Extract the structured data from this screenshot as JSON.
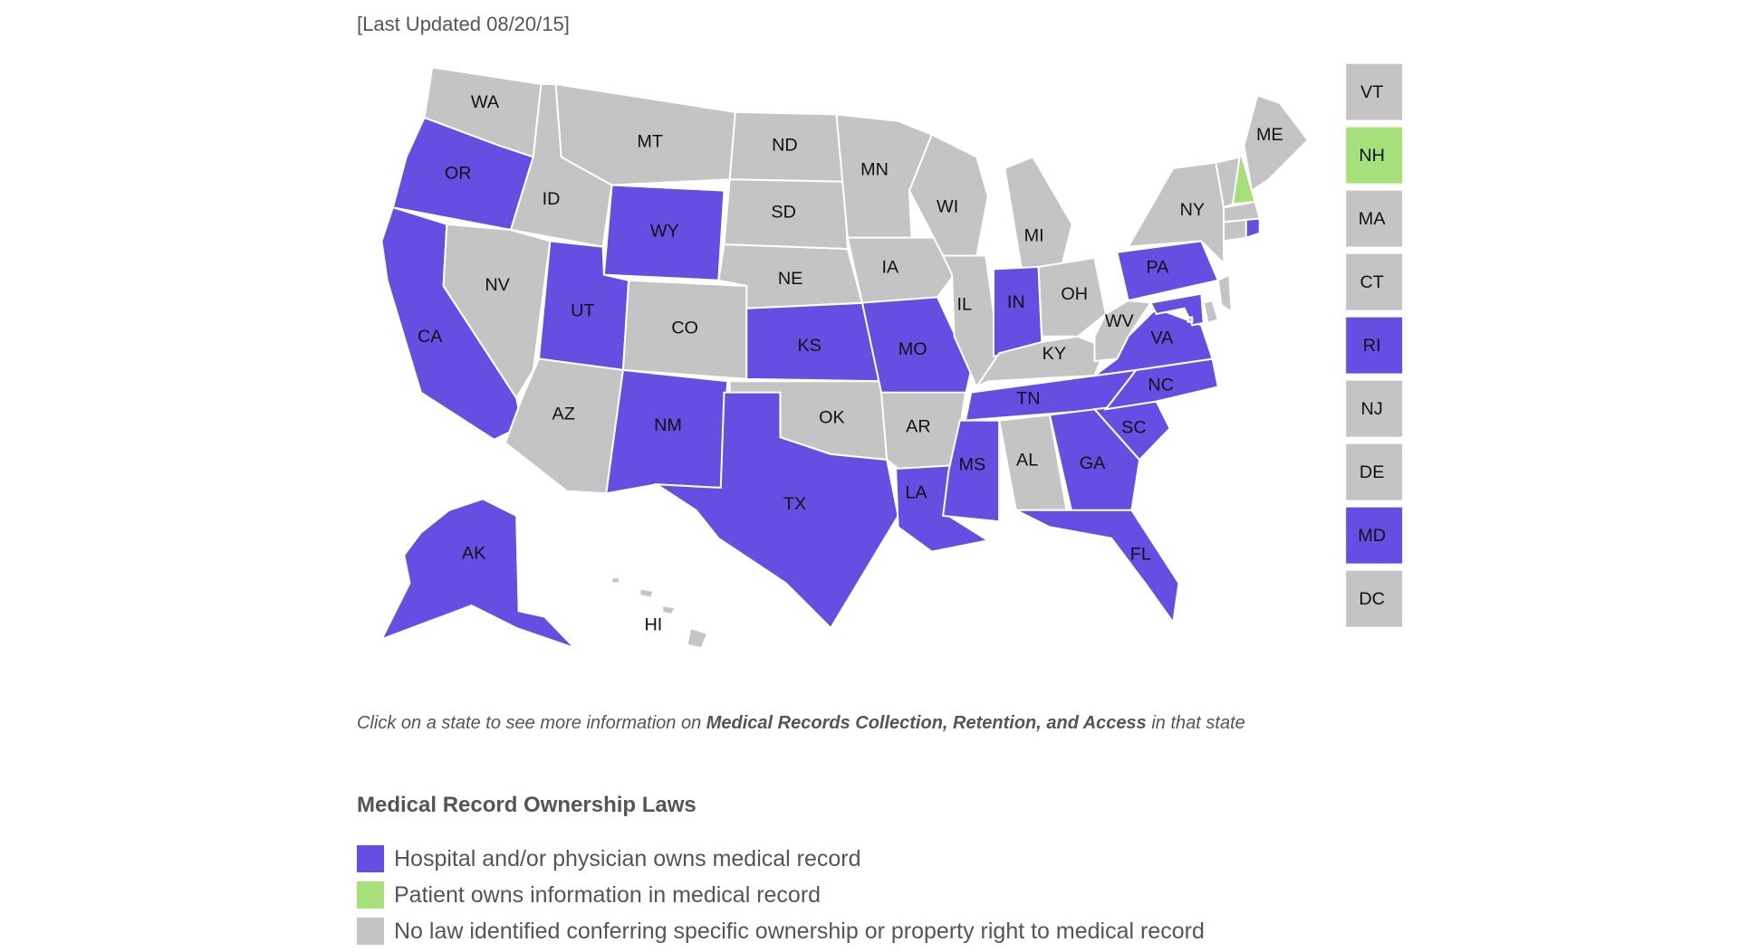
{
  "last_updated": "[Last Updated 08/20/15]",
  "colors": {
    "hospital": "#664ee3",
    "patient": "#a6e07b",
    "none": "#c4c4c5"
  },
  "states": [
    {
      "abbr": "WA",
      "category": "none"
    },
    {
      "abbr": "OR",
      "category": "hospital"
    },
    {
      "abbr": "CA",
      "category": "hospital"
    },
    {
      "abbr": "ID",
      "category": "none"
    },
    {
      "abbr": "NV",
      "category": "none"
    },
    {
      "abbr": "MT",
      "category": "none"
    },
    {
      "abbr": "WY",
      "category": "hospital"
    },
    {
      "abbr": "UT",
      "category": "hospital"
    },
    {
      "abbr": "AZ",
      "category": "none"
    },
    {
      "abbr": "CO",
      "category": "none"
    },
    {
      "abbr": "NM",
      "category": "hospital"
    },
    {
      "abbr": "ND",
      "category": "none"
    },
    {
      "abbr": "SD",
      "category": "none"
    },
    {
      "abbr": "NE",
      "category": "none"
    },
    {
      "abbr": "KS",
      "category": "hospital"
    },
    {
      "abbr": "OK",
      "category": "none"
    },
    {
      "abbr": "TX",
      "category": "hospital"
    },
    {
      "abbr": "MN",
      "category": "none"
    },
    {
      "abbr": "IA",
      "category": "none"
    },
    {
      "abbr": "MO",
      "category": "hospital"
    },
    {
      "abbr": "AR",
      "category": "none"
    },
    {
      "abbr": "LA",
      "category": "hospital"
    },
    {
      "abbr": "WI",
      "category": "none"
    },
    {
      "abbr": "IL",
      "category": "none"
    },
    {
      "abbr": "MI",
      "category": "none"
    },
    {
      "abbr": "IN",
      "category": "hospital"
    },
    {
      "abbr": "OH",
      "category": "none"
    },
    {
      "abbr": "KY",
      "category": "none"
    },
    {
      "abbr": "TN",
      "category": "hospital"
    },
    {
      "abbr": "MS",
      "category": "hospital"
    },
    {
      "abbr": "AL",
      "category": "none"
    },
    {
      "abbr": "GA",
      "category": "hospital"
    },
    {
      "abbr": "FL",
      "category": "hospital"
    },
    {
      "abbr": "SC",
      "category": "hospital"
    },
    {
      "abbr": "NC",
      "category": "hospital"
    },
    {
      "abbr": "VA",
      "category": "hospital"
    },
    {
      "abbr": "WV",
      "category": "none"
    },
    {
      "abbr": "PA",
      "category": "hospital"
    },
    {
      "abbr": "NY",
      "category": "none"
    },
    {
      "abbr": "ME",
      "category": "none"
    },
    {
      "abbr": "AK",
      "category": "hospital"
    },
    {
      "abbr": "HI",
      "category": "none"
    },
    {
      "abbr": "VT",
      "category": "none"
    },
    {
      "abbr": "NH",
      "category": "patient"
    },
    {
      "abbr": "MA",
      "category": "none"
    },
    {
      "abbr": "CT",
      "category": "none"
    },
    {
      "abbr": "RI",
      "category": "hospital"
    },
    {
      "abbr": "NJ",
      "category": "none"
    },
    {
      "abbr": "DE",
      "category": "none"
    },
    {
      "abbr": "MD",
      "category": "hospital"
    },
    {
      "abbr": "DC",
      "category": "none"
    }
  ],
  "side_boxes": [
    "VT",
    "NH",
    "MA",
    "CT",
    "RI",
    "NJ",
    "DE",
    "MD",
    "DC"
  ],
  "caption": {
    "pre": "Click on a state to see more information on ",
    "bold": "Medical Records Collection, Retention, and Access",
    "post": " in that state"
  },
  "legend": {
    "title": "Medical Record Ownership Laws",
    "items": [
      {
        "key": "hospital",
        "label": "Hospital and/or physician owns medical record"
      },
      {
        "key": "patient",
        "label": "Patient owns information in medical record"
      },
      {
        "key": "none",
        "label": "No law identified conferring specific ownership or property right to medical record"
      }
    ]
  }
}
